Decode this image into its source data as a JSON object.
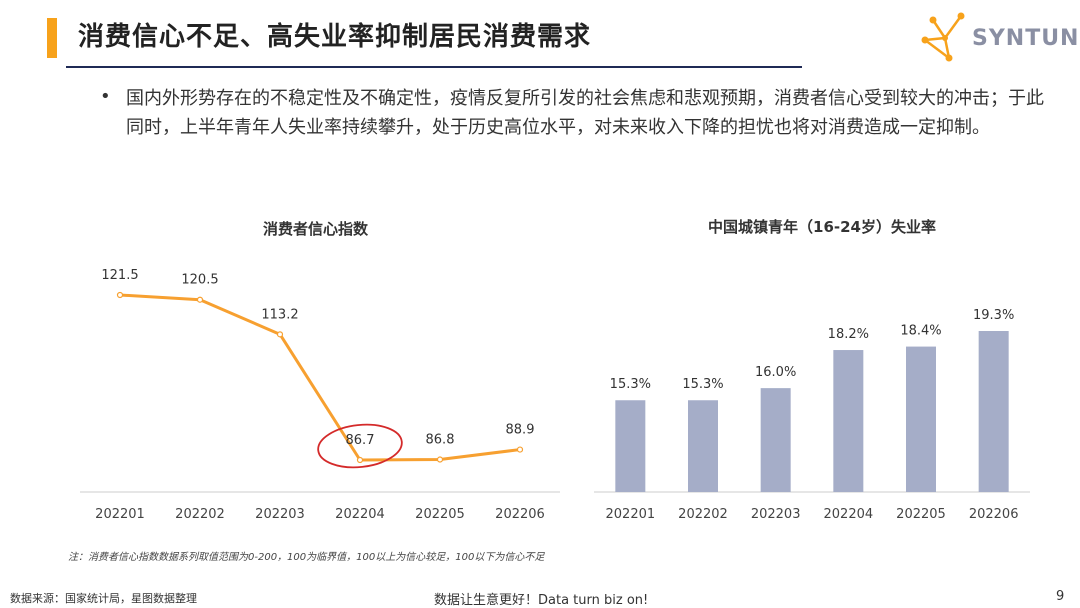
{
  "header": {
    "title": "消费信心不足、高失业率抑制居民消费需求",
    "logo_text": "SYNTUN",
    "accent_color": "#f7a21b",
    "rule_color": "#1f2a55"
  },
  "body": {
    "bullet": "•",
    "paragraph": "国内外形势存在的不稳定性及不确定性，疫情反复所引发的社会焦虑和悲观预期，消费者信心受到较大的冲击；于此同时，上半年青年人失业率持续攀升，处于历史高位水平，对未来收入下降的担忧也将对消费造成一定抑制。"
  },
  "chart_data": [
    {
      "type": "line",
      "title": "消费者信心指数",
      "categories": [
        "202201",
        "202202",
        "202203",
        "202204",
        "202205",
        "202206"
      ],
      "values": [
        121.5,
        120.5,
        113.2,
        86.7,
        86.8,
        88.9
      ],
      "labels": [
        "121.5",
        "120.5",
        "113.2",
        "86.7",
        "86.8",
        "88.9"
      ],
      "color": "#f7a030",
      "annotation": {
        "type": "circle",
        "index": 3,
        "color": "#d42a2a"
      }
    },
    {
      "type": "bar",
      "title": "中国城镇青年（16-24岁）失业率",
      "categories": [
        "202201",
        "202202",
        "202203",
        "202204",
        "202205",
        "202206"
      ],
      "values": [
        15.3,
        15.3,
        16.0,
        18.2,
        18.4,
        19.3
      ],
      "labels": [
        "15.3%",
        "15.3%",
        "16.0%",
        "18.2%",
        "18.4%",
        "19.3%"
      ],
      "color": "#a5adc8"
    }
  ],
  "footer": {
    "note": "注：消费者信心指数数据系列取值范围为0-200，100为临界值，100以上为信心较足，100以下为信心不足",
    "source": "数据来源：国家统计局，星图数据整理",
    "slogan": "数据让生意更好！Data turn biz on!",
    "page": "9"
  }
}
